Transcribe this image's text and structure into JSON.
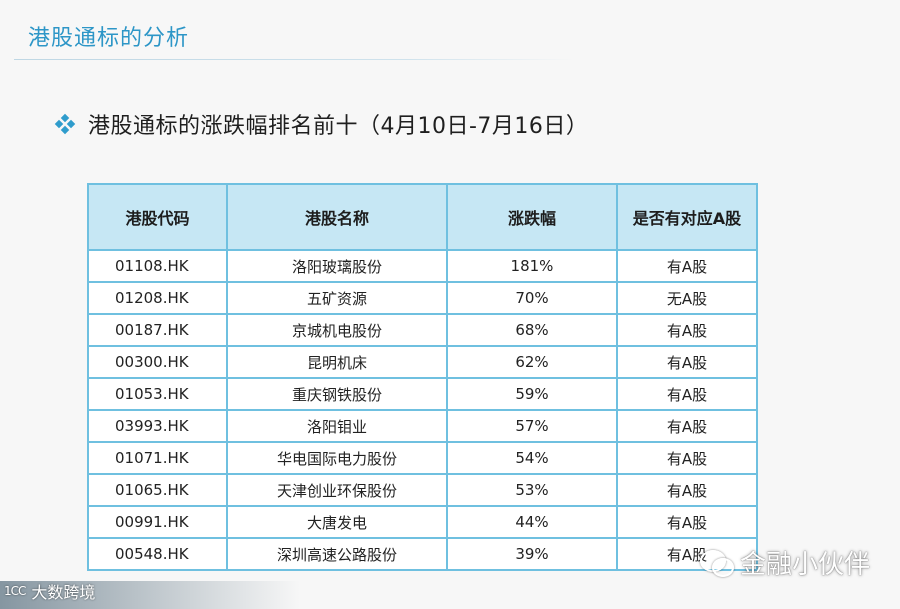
{
  "header": {
    "title": "港股通标的分析"
  },
  "bullet": {
    "text": "港股通标的涨跌幅排名前十（4月10日-7月16日）"
  },
  "table": {
    "columns": [
      "港股代码",
      "港股名称",
      "涨跌幅",
      "是否有对应A股"
    ],
    "rows": [
      {
        "code": "01108.HK",
        "name": "洛阳玻璃股份",
        "change": "181%",
        "a_share": "有A股"
      },
      {
        "code": "01208.HK",
        "name": "五矿资源",
        "change": "70%",
        "a_share": "无A股"
      },
      {
        "code": "00187.HK",
        "name": "京城机电股份",
        "change": "68%",
        "a_share": "有A股"
      },
      {
        "code": "00300.HK",
        "name": "昆明机床",
        "change": "62%",
        "a_share": "有A股"
      },
      {
        "code": "01053.HK",
        "name": "重庆钢铁股份",
        "change": "59%",
        "a_share": "有A股"
      },
      {
        "code": "03993.HK",
        "name": "洛阳钼业",
        "change": "57%",
        "a_share": "有A股"
      },
      {
        "code": "01071.HK",
        "name": "华电国际电力股份",
        "change": "54%",
        "a_share": "有A股"
      },
      {
        "code": "01065.HK",
        "name": "天津创业环保股份",
        "change": "53%",
        "a_share": "有A股"
      },
      {
        "code": "00991.HK",
        "name": "大唐发电",
        "change": "44%",
        "a_share": "有A股"
      },
      {
        "code": "00548.HK",
        "name": "深圳高速公路股份",
        "change": "39%",
        "a_share": "有A股"
      }
    ]
  },
  "watermark": {
    "text": "金融小伙伴",
    "icon": "wechat-icon"
  },
  "corner_logo": {
    "mark": "1CC",
    "text": "大数跨境"
  },
  "colors": {
    "title": "#2d96c7",
    "header_fill": "#c6e7f4",
    "border": "#6fc0e0",
    "no_a_share": "#e0301e"
  }
}
